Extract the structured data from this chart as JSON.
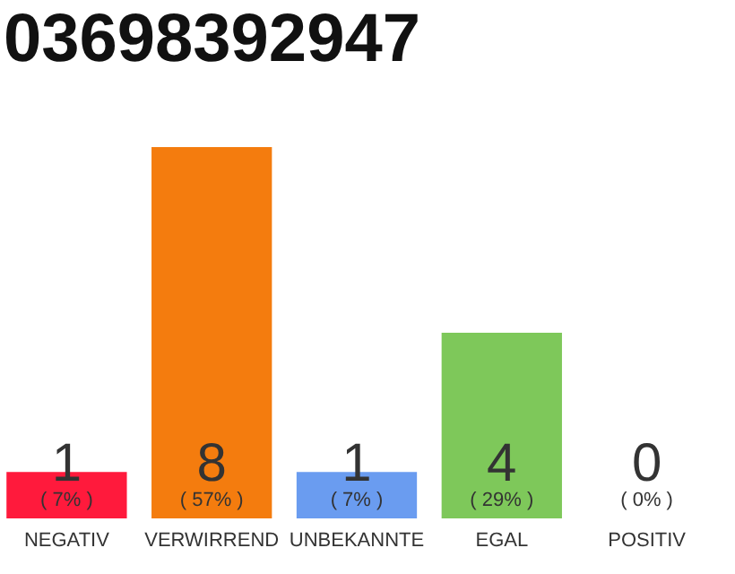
{
  "chart_data": {
    "type": "bar",
    "title": "03698392947",
    "categories": [
      "NEGATIV",
      "VERWIRREND",
      "UNBEKANNTE",
      "EGAL",
      "POSITIV"
    ],
    "values": [
      1,
      8,
      1,
      4,
      0
    ],
    "colors": [
      "#ff1a3c",
      "#f47c0e",
      "#6a9cf0",
      "#7ec85a",
      "#eeeeee"
    ],
    "data_labels": true,
    "annotations": [
      {
        "text": "( 7% )",
        "x": "NEGATIV",
        "y": 0
      },
      {
        "text": "( 57% )",
        "x": "VERWIRREND",
        "y": 0
      },
      {
        "text": "( 7% )",
        "x": "UNBEKANNTE",
        "y": 0
      },
      {
        "text": "( 29% )",
        "x": "EGAL",
        "y": 0
      },
      {
        "text": "( 0% )",
        "x": "POSITIV",
        "y": 0
      }
    ],
    "grid": false
  }
}
